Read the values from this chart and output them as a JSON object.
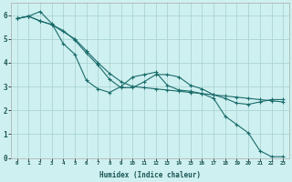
{
  "title": "",
  "xlabel": "Humidex (Indice chaleur)",
  "ylabel": "",
  "background_color": "#cff0f0",
  "grid_color": "#aad4d4",
  "line_color": "#1a6b6b",
  "xlim": [
    -0.5,
    23.5
  ],
  "ylim": [
    0,
    6.5
  ],
  "ytick_values": [
    0,
    1,
    2,
    3,
    4,
    5,
    6
  ],
  "line1_x": [
    0,
    1,
    2,
    3,
    4,
    5,
    6,
    7,
    8,
    9,
    10,
    11,
    12,
    13,
    14,
    15,
    16,
    17,
    18,
    19,
    20,
    21,
    22,
    23
  ],
  "line1_y": [
    5.85,
    5.95,
    6.15,
    5.65,
    4.8,
    4.35,
    3.25,
    2.9,
    2.75,
    3.0,
    3.4,
    3.5,
    3.6,
    3.05,
    2.85,
    2.8,
    2.7,
    2.5,
    1.75,
    1.4,
    1.05,
    0.3,
    0.05,
    0.05
  ],
  "line2_x": [
    0,
    1,
    2,
    3,
    4,
    5,
    6,
    7,
    8,
    9,
    10,
    11,
    12,
    13,
    14,
    15,
    16,
    17,
    18,
    19,
    20,
    21,
    22,
    23
  ],
  "line2_y": [
    5.85,
    5.95,
    5.75,
    5.6,
    5.35,
    4.95,
    4.4,
    3.9,
    3.3,
    2.95,
    2.95,
    3.2,
    3.5,
    3.5,
    3.4,
    3.05,
    2.9,
    2.65,
    2.5,
    2.3,
    2.25,
    2.35,
    2.45,
    2.45
  ],
  "line3_x": [
    0,
    1,
    2,
    3,
    5,
    6,
    7,
    8,
    9,
    10,
    11,
    12,
    13,
    14,
    15,
    16,
    17,
    18,
    19,
    20,
    21,
    22,
    23
  ],
  "line3_y": [
    5.85,
    5.95,
    5.75,
    5.6,
    5.0,
    4.5,
    4.0,
    3.55,
    3.2,
    3.0,
    2.95,
    2.9,
    2.85,
    2.8,
    2.75,
    2.7,
    2.65,
    2.6,
    2.55,
    2.5,
    2.45,
    2.4,
    2.35
  ]
}
